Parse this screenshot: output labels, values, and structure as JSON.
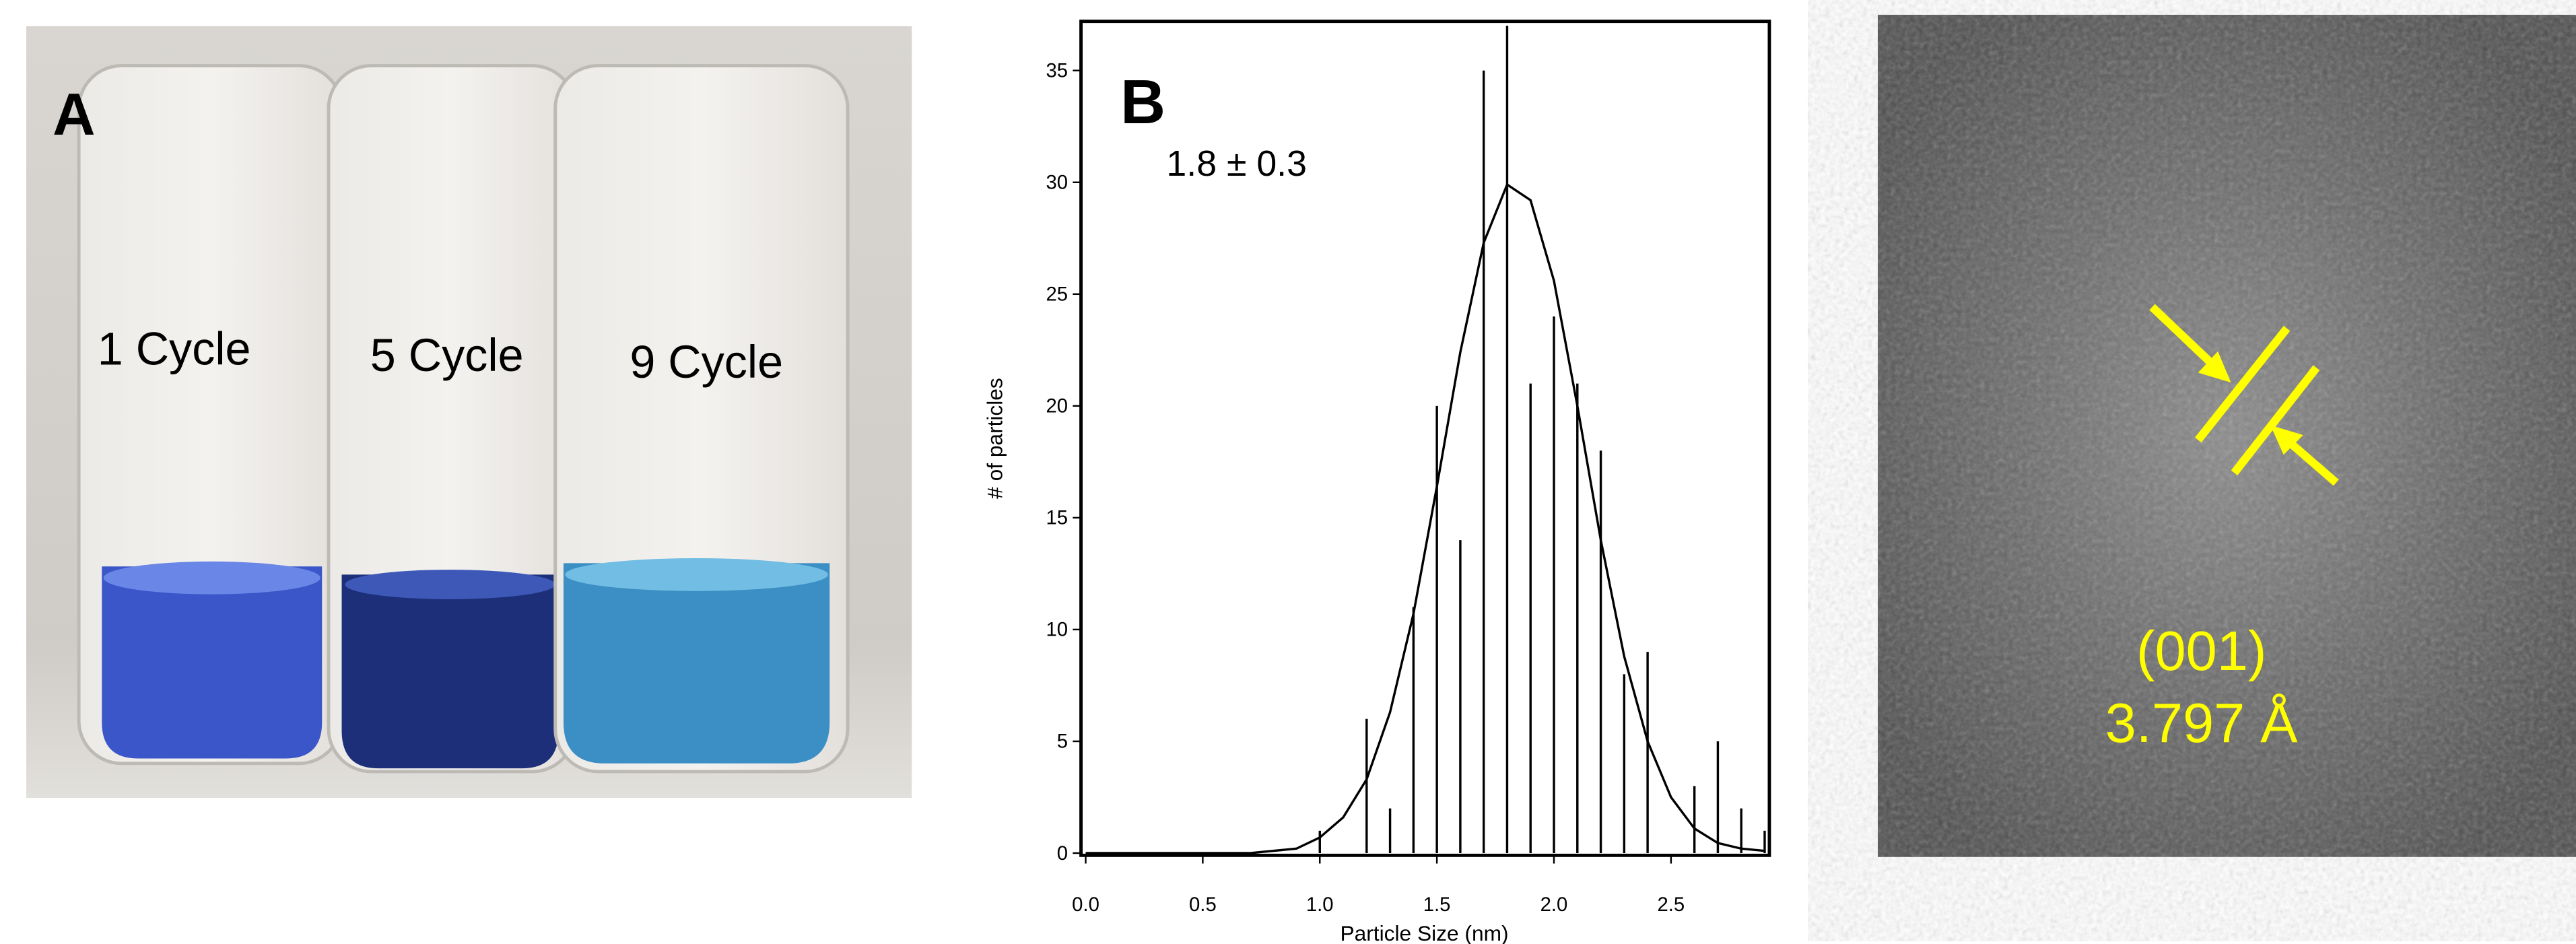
{
  "panel_a": {
    "label": "A",
    "vials": [
      "1 Cycle",
      "5 Cycle",
      "9 Cycle"
    ]
  },
  "chart_data": {
    "type": "bar",
    "label": "B",
    "annotation": "1.8 ± 0.3",
    "x_label": "Particle Size (nm)",
    "y_label": "# of particles",
    "x": [
      1.0,
      1.2,
      1.3,
      1.4,
      1.5,
      1.6,
      1.7,
      1.8,
      1.9,
      2.0,
      2.1,
      2.2,
      2.3,
      2.4,
      2.6,
      2.7,
      2.8,
      2.9
    ],
    "values": [
      1,
      6,
      2,
      11,
      20,
      14,
      35,
      37,
      21,
      24,
      21,
      18,
      8,
      9,
      3,
      5,
      2,
      1
    ],
    "color": "#000000",
    "fit": {
      "type": "line",
      "color": "#000000",
      "x": [
        0.0,
        0.1,
        0.2,
        0.3,
        0.4,
        0.5,
        0.6,
        0.7,
        0.8,
        0.9,
        1.0,
        1.1,
        1.2,
        1.3,
        1.4,
        1.5,
        1.6,
        1.7,
        1.8,
        1.9,
        2.0,
        2.1,
        2.2,
        2.3,
        2.4,
        2.5,
        2.6,
        2.7,
        2.8,
        2.9
      ],
      "values": [
        0,
        0,
        0,
        0,
        0,
        0,
        0,
        0,
        0.1,
        0.2,
        0.7,
        1.6,
        3.3,
        6.3,
        10.7,
        16.4,
        22.4,
        27.3,
        29.9,
        29.2,
        25.6,
        20.0,
        14.0,
        8.8,
        5.0,
        2.5,
        1.1,
        0.45,
        0.2,
        0.1
      ]
    },
    "xlim": [
      -0.02,
      2.92
    ],
    "ylim": [
      -0.1,
      37.2
    ],
    "xticks": [
      {
        "value": 0,
        "label": "0.0"
      },
      0.5,
      {
        "value": 1,
        "label": "1.0"
      },
      1.5,
      {
        "value": 2,
        "label": "2.0"
      },
      2.5
    ],
    "yticks": [
      0,
      5,
      10,
      15,
      20,
      25,
      30,
      35
    ]
  },
  "panel_c": {
    "plane": "(001)",
    "spacing": "3.797 Å"
  }
}
